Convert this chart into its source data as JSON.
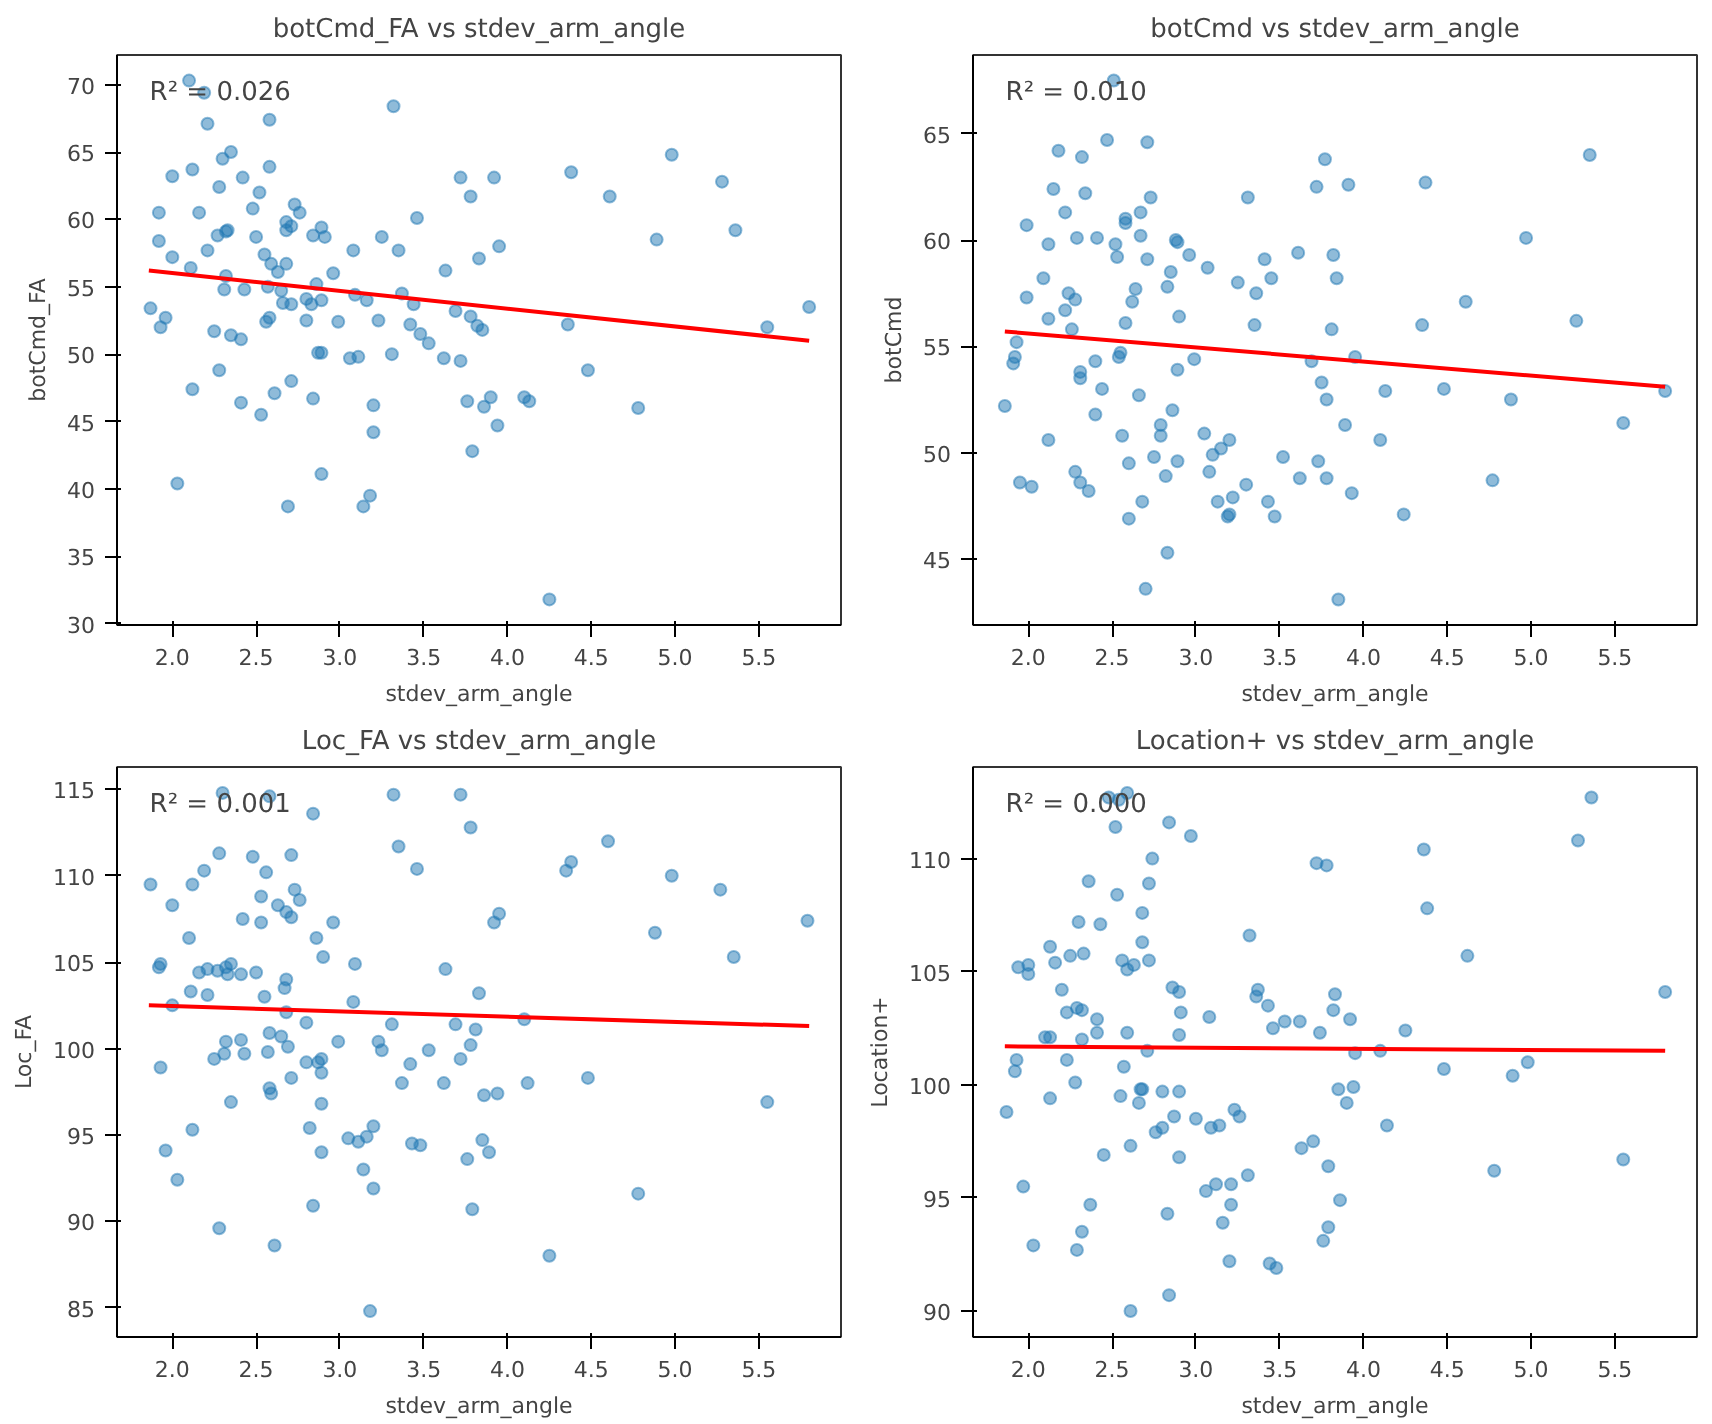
{
  "chart_data": [
    {
      "type": "scatter",
      "title": "botCmd_FA vs stdev_arm_angle",
      "xlabel": "stdev_arm_angle",
      "ylabel": "botCmd_FA",
      "annotations": [
        "R² = 0.026"
      ],
      "grid": false,
      "xlim": [
        1.67,
        5.99
      ],
      "xticks": [
        {
          "value": 2,
          "label": "2.0"
        },
        {
          "value": 2.5,
          "label": "2.5"
        },
        {
          "value": 3,
          "label": "3.0"
        },
        {
          "value": 3.5,
          "label": "3.5"
        },
        {
          "value": 4,
          "label": "4.0"
        },
        {
          "value": 4.5,
          "label": "4.5"
        },
        {
          "value": 5,
          "label": "5.0"
        },
        {
          "value": 5.5,
          "label": "5.5"
        }
      ],
      "ylim": [
        29.9,
        72.2
      ],
      "yticks": [
        30,
        35,
        40,
        45,
        50,
        55,
        60,
        65,
        70
      ],
      "series": [
        {
          "marker": "circle",
          "color": "#1f77b4",
          "x": [
            2.1,
            2.19,
            2.21,
            3.32,
            2.58,
            2.35,
            2.3,
            2.0,
            2.12,
            2.58,
            2.42,
            2.28,
            2.52,
            2.48,
            2.16,
            1.92,
            2.73,
            2.76,
            2.68,
            2.68,
            2.71,
            2.89,
            2.91,
            2.84,
            2.5,
            2.27,
            2.32,
            2.33,
            1.92,
            2.21,
            2.55,
            2.0,
            2.59,
            2.68,
            2.63,
            2.11,
            2.32,
            2.96,
            3.08,
            3.25,
            3.35,
            3.46,
            3.72,
            3.78,
            3.92,
            3.95,
            3.83,
            3.63,
            4.38,
            4.61,
            4.98,
            5.28,
            5.36,
            4.89,
            5.8,
            5.55,
            4.36,
            4.48,
            4.78,
            1.87,
            1.96,
            1.93,
            2.31,
            2.43,
            2.25,
            2.35,
            2.41,
            2.28,
            2.12,
            2.57,
            2.65,
            2.66,
            2.71,
            2.86,
            2.8,
            2.83,
            2.89,
            2.8,
            2.58,
            2.56,
            2.99,
            3.09,
            3.16,
            3.23,
            3.37,
            3.44,
            3.42,
            3.48,
            3.53,
            3.69,
            3.78,
            3.82,
            3.85,
            2.87,
            2.89,
            3.06,
            3.11,
            3.31,
            3.62,
            3.72,
            2.71,
            2.61,
            2.84,
            2.41,
            2.53,
            3.2,
            3.2,
            3.76,
            3.9,
            3.86,
            3.94,
            4.1,
            4.13,
            3.79,
            2.03,
            2.89,
            2.69,
            3.18,
            3.14,
            4.25
          ],
          "values": [
            70.3,
            69.4,
            67.1,
            68.4,
            67.4,
            65.0,
            64.5,
            63.2,
            63.7,
            63.9,
            63.1,
            62.4,
            62.0,
            60.8,
            60.5,
            60.5,
            61.1,
            60.5,
            59.8,
            59.2,
            59.5,
            59.4,
            58.7,
            58.8,
            58.7,
            58.8,
            59.1,
            59.2,
            58.4,
            57.7,
            57.4,
            57.2,
            56.7,
            56.7,
            56.1,
            56.4,
            55.8,
            56.0,
            57.7,
            58.7,
            57.7,
            60.1,
            63.1,
            61.7,
            63.1,
            58.0,
            57.1,
            56.2,
            63.5,
            61.7,
            64.8,
            62.8,
            59.2,
            58.5,
            53.5,
            52.0,
            52.2,
            48.8,
            46.0,
            53.4,
            52.7,
            52.0,
            54.8,
            54.8,
            51.7,
            51.4,
            51.1,
            48.8,
            47.4,
            55.0,
            54.7,
            53.8,
            53.7,
            55.2,
            54.1,
            53.7,
            54.0,
            52.5,
            52.7,
            52.4,
            52.4,
            54.4,
            54.0,
            52.5,
            54.5,
            53.7,
            52.2,
            51.5,
            50.8,
            53.2,
            52.8,
            52.1,
            51.8,
            50.1,
            50.1,
            49.7,
            49.8,
            50.0,
            49.7,
            49.5,
            48.0,
            47.1,
            46.7,
            46.4,
            45.5,
            46.2,
            44.2,
            46.5,
            46.8,
            46.1,
            44.7,
            46.8,
            46.5,
            42.8,
            40.4,
            41.1,
            38.7,
            39.5,
            38.7,
            31.8
          ]
        },
        {
          "type": "line",
          "color": "#ff0000",
          "x": [
            1.86,
            5.8
          ],
          "values": [
            56.2,
            51.0
          ]
        }
      ]
    },
    {
      "type": "scatter",
      "title": "botCmd vs stdev_arm_angle",
      "xlabel": "stdev_arm_angle",
      "ylabel": "botCmd",
      "annotations": [
        "R² = 0.010"
      ],
      "grid": false,
      "xlim": [
        1.67,
        5.99
      ],
      "xticks": [
        {
          "value": 2,
          "label": "2.0"
        },
        {
          "value": 2.5,
          "label": "2.5"
        },
        {
          "value": 3,
          "label": "3.0"
        },
        {
          "value": 3.5,
          "label": "3.5"
        },
        {
          "value": 4,
          "label": "4.0"
        },
        {
          "value": 4.5,
          "label": "4.5"
        },
        {
          "value": 5,
          "label": "5.0"
        },
        {
          "value": 5.5,
          "label": "5.5"
        }
      ],
      "ylim": [
        41.9,
        68.7
      ],
      "yticks": [
        45,
        50,
        55,
        60,
        65
      ],
      "series": [
        {
          "marker": "circle",
          "color": "#1f77b4",
          "x": [
            2.51,
            2.47,
            2.71,
            2.18,
            2.32,
            2.15,
            2.34,
            2.73,
            2.22,
            2.67,
            2.58,
            2.58,
            1.99,
            2.12,
            2.29,
            2.41,
            2.67,
            2.52,
            2.53,
            2.71,
            2.88,
            2.89,
            2.96,
            2.85,
            3.07,
            3.31,
            3.25,
            3.41,
            3.45,
            3.36,
            3.61,
            3.82,
            3.84,
            3.72,
            3.77,
            3.91,
            4.37,
            5.35,
            4.97,
            4.61,
            5.27,
            4.35,
            3.81,
            3.35,
            2.09,
            1.99,
            2.24,
            2.28,
            2.22,
            2.12,
            2.26,
            2.64,
            2.62,
            2.83,
            2.58,
            2.9,
            1.93,
            1.92,
            1.91,
            1.86,
            2.4,
            2.31,
            2.31,
            2.44,
            2.55,
            2.54,
            2.4,
            2.66,
            2.89,
            2.99,
            3.95,
            3.69,
            3.75,
            3.78,
            4.13,
            4.48,
            4.88,
            5.8,
            5.55,
            2.12,
            2.56,
            2.79,
            2.79,
            2.86,
            3.05,
            3.2,
            3.15,
            3.1,
            2.75,
            2.89,
            2.6,
            2.28,
            2.82,
            3.08,
            2.31,
            2.36,
            1.95,
            2.02,
            2.68,
            2.6,
            2.83,
            2.7,
            3.13,
            3.22,
            3.19,
            3.2,
            3.3,
            3.43,
            3.47,
            3.52,
            3.62,
            3.73,
            3.78,
            3.89,
            3.93,
            4.1,
            4.24,
            4.77,
            3.85
          ],
          "values": [
            67.5,
            64.7,
            64.6,
            64.2,
            63.9,
            62.4,
            62.2,
            62.0,
            61.3,
            61.3,
            61.0,
            60.8,
            60.7,
            59.8,
            60.1,
            60.1,
            60.2,
            59.8,
            59.2,
            59.1,
            60.0,
            59.9,
            59.3,
            58.5,
            58.7,
            62.0,
            58.0,
            59.1,
            58.2,
            57.5,
            59.4,
            59.3,
            58.2,
            62.5,
            63.8,
            62.6,
            62.7,
            64.0,
            60.1,
            57.1,
            56.2,
            56.0,
            55.8,
            56.0,
            58.2,
            57.3,
            57.5,
            57.2,
            56.7,
            56.3,
            55.8,
            57.7,
            57.1,
            57.8,
            56.1,
            56.4,
            55.2,
            54.5,
            54.2,
            52.2,
            54.3,
            53.8,
            53.5,
            53.0,
            54.7,
            54.5,
            51.8,
            52.7,
            53.9,
            54.4,
            54.5,
            54.3,
            53.3,
            52.5,
            52.9,
            53.0,
            52.5,
            52.9,
            51.4,
            50.6,
            50.8,
            51.3,
            50.8,
            52.0,
            50.9,
            50.6,
            50.2,
            49.9,
            49.8,
            49.6,
            49.5,
            49.1,
            48.9,
            49.1,
            48.6,
            48.2,
            48.6,
            48.4,
            47.7,
            46.9,
            45.3,
            43.6,
            47.7,
            47.9,
            47.0,
            47.1,
            48.5,
            47.7,
            47.0,
            49.8,
            48.8,
            49.6,
            48.8,
            51.3,
            48.1,
            50.6,
            47.1,
            48.7,
            43.1
          ]
        },
        {
          "type": "line",
          "color": "#ff0000",
          "x": [
            1.86,
            5.8
          ],
          "values": [
            55.7,
            53.1
          ]
        }
      ]
    },
    {
      "type": "scatter",
      "title": "Loc_FA vs stdev_arm_angle",
      "xlabel": "stdev_arm_angle",
      "ylabel": "Loc_FA",
      "annotations": [
        "R² = 0.001"
      ],
      "grid": false,
      "xlim": [
        1.67,
        5.99
      ],
      "xticks": [
        {
          "value": 2,
          "label": "2.0"
        },
        {
          "value": 2.5,
          "label": "2.5"
        },
        {
          "value": 3,
          "label": "3.0"
        },
        {
          "value": 3.5,
          "label": "3.5"
        },
        {
          "value": 4,
          "label": "4.0"
        },
        {
          "value": 4.5,
          "label": "4.5"
        },
        {
          "value": 5,
          "label": "5.0"
        },
        {
          "value": 5.5,
          "label": "5.5"
        }
      ],
      "ylim": [
        83.3,
        116.3
      ],
      "yticks": [
        85,
        90,
        95,
        100,
        105,
        110,
        115
      ],
      "series": [
        {
          "marker": "circle",
          "color": "#1f77b4",
          "x": [
            2.3,
            2.58,
            3.32,
            3.72,
            2.84,
            3.78,
            3.35,
            4.6,
            2.28,
            2.48,
            2.71,
            2.19,
            2.56,
            3.46,
            4.38,
            4.35,
            1.87,
            2.12,
            2.73,
            2.76,
            2.53,
            2.63,
            2.68,
            2.71,
            2.0,
            4.98,
            5.27,
            5.79,
            4.88,
            5.35,
            3.92,
            3.95,
            2.42,
            2.53,
            2.96,
            2.1,
            2.86,
            2.9,
            1.92,
            1.93,
            2.16,
            2.21,
            2.27,
            2.32,
            2.35,
            2.33,
            2.41,
            2.5,
            3.09,
            3.63,
            2.68,
            2.67,
            2.11,
            2.21,
            2.55,
            2.0,
            3.83,
            3.08,
            2.68,
            4.1,
            2.8,
            3.31,
            3.69,
            3.81,
            2.58,
            2.65,
            2.32,
            2.41,
            2.99,
            3.23,
            2.69,
            3.25,
            3.53,
            3.78,
            2.57,
            2.31,
            2.43,
            2.25,
            2.89,
            2.8,
            2.87,
            3.72,
            3.42,
            1.93,
            2.89,
            2.71,
            3.37,
            3.62,
            4.12,
            4.48,
            2.58,
            2.59,
            3.86,
            3.94,
            2.35,
            2.89,
            5.55,
            2.12,
            2.82,
            3.05,
            3.11,
            3.16,
            3.2,
            3.43,
            3.48,
            3.85,
            3.89,
            3.76,
            1.96,
            2.89,
            2.03,
            3.14,
            3.2,
            2.84,
            3.79,
            4.78,
            2.28,
            2.61,
            4.25,
            3.18
          ],
          "values": [
            114.8,
            114.6,
            114.7,
            114.7,
            113.6,
            112.8,
            111.7,
            112.0,
            111.3,
            111.1,
            111.2,
            110.3,
            110.2,
            110.4,
            110.8,
            110.3,
            109.5,
            109.5,
            109.2,
            108.6,
            108.8,
            108.3,
            107.9,
            107.6,
            108.3,
            110.0,
            109.2,
            107.4,
            106.7,
            105.3,
            107.3,
            107.8,
            107.5,
            107.3,
            107.3,
            106.4,
            106.4,
            105.3,
            104.7,
            104.9,
            104.4,
            104.6,
            104.5,
            104.7,
            104.9,
            104.3,
            104.3,
            104.4,
            104.9,
            104.6,
            104.0,
            103.5,
            103.3,
            103.1,
            103.0,
            102.5,
            103.2,
            102.7,
            102.1,
            101.7,
            101.5,
            101.4,
            101.4,
            101.1,
            100.9,
            100.7,
            100.4,
            100.5,
            100.4,
            100.4,
            100.1,
            99.9,
            99.9,
            100.2,
            99.8,
            99.7,
            99.7,
            99.4,
            99.4,
            99.2,
            99.2,
            99.4,
            99.1,
            98.9,
            98.6,
            98.3,
            98.0,
            98.0,
            98.0,
            98.3,
            97.7,
            97.4,
            97.3,
            97.4,
            96.9,
            96.8,
            96.9,
            95.3,
            95.4,
            94.8,
            94.6,
            94.9,
            95.5,
            94.5,
            94.4,
            94.7,
            94.0,
            93.6,
            94.1,
            94.0,
            92.4,
            93.0,
            91.9,
            90.9,
            90.7,
            91.6,
            89.6,
            88.6,
            88.0,
            84.8
          ]
        },
        {
          "type": "line",
          "color": "#ff0000",
          "x": [
            1.86,
            5.8
          ],
          "values": [
            102.5,
            101.3
          ]
        }
      ]
    },
    {
      "type": "scatter",
      "title": "Location+ vs stdev_arm_angle",
      "xlabel": "stdev_arm_angle",
      "ylabel": "Location+",
      "annotations": [
        "R² = 0.000"
      ],
      "grid": false,
      "xlim": [
        1.67,
        5.99
      ],
      "xticks": [
        {
          "value": 2,
          "label": "2.0"
        },
        {
          "value": 2.5,
          "label": "2.5"
        },
        {
          "value": 3,
          "label": "3.0"
        },
        {
          "value": 3.5,
          "label": "3.5"
        },
        {
          "value": 4,
          "label": "4.0"
        },
        {
          "value": 4.5,
          "label": "4.5"
        },
        {
          "value": 5,
          "label": "5.0"
        },
        {
          "value": 5.5,
          "label": "5.5"
        }
      ],
      "ylim": [
        88.85,
        114.05
      ],
      "yticks": [
        90,
        95,
        100,
        105,
        110
      ],
      "series": [
        {
          "marker": "circle",
          "color": "#1f77b4",
          "x": [
            2.59,
            2.54,
            2.48,
            2.52,
            2.84,
            2.97,
            5.36,
            5.28,
            4.36,
            3.72,
            3.78,
            2.74,
            2.36,
            2.72,
            2.53,
            4.38,
            2.68,
            2.3,
            2.43,
            3.32,
            2.68,
            2.13,
            2.25,
            2.33,
            2.56,
            2.72,
            2.63,
            2.59,
            2.16,
            1.94,
            2.0,
            2.0,
            4.62,
            5.8,
            2.2,
            2.86,
            2.9,
            3.37,
            3.36,
            3.83,
            2.23,
            2.29,
            2.32,
            2.91,
            3.43,
            3.82,
            3.08,
            2.41,
            3.53,
            3.62,
            3.92,
            3.46,
            2.41,
            2.59,
            2.9,
            3.74,
            4.25,
            2.1,
            2.13,
            2.32,
            2.71,
            3.95,
            4.1,
            1.93,
            2.23,
            1.92,
            2.57,
            4.48,
            4.98,
            4.89,
            2.28,
            3.94,
            3.85,
            3.9,
            2.68,
            2.67,
            2.66,
            2.55,
            2.8,
            2.9,
            2.13,
            1.87,
            3.23,
            3.26,
            2.87,
            3.0,
            3.09,
            3.14,
            2.8,
            2.76,
            4.14,
            3.7,
            3.63,
            2.61,
            2.45,
            2.9,
            3.79,
            4.78,
            5.55,
            3.31,
            3.21,
            3.12,
            3.06,
            3.21,
            1.97,
            2.37,
            3.86,
            2.83,
            3.16,
            3.79,
            2.32,
            3.76,
            2.03,
            2.29,
            3.2,
            3.44,
            3.48,
            2.84,
            2.61
          ],
          "values": [
            112.9,
            112.6,
            112.7,
            111.4,
            111.6,
            111.0,
            112.7,
            110.8,
            110.4,
            109.8,
            109.7,
            110.0,
            109.0,
            108.9,
            108.4,
            107.8,
            107.6,
            107.2,
            107.1,
            106.6,
            106.3,
            106.1,
            105.7,
            105.8,
            105.5,
            105.5,
            105.3,
            105.1,
            105.4,
            105.2,
            105.3,
            104.9,
            105.7,
            104.1,
            104.2,
            104.3,
            104.1,
            104.2,
            103.9,
            104.0,
            103.2,
            103.4,
            103.3,
            103.2,
            103.5,
            103.3,
            103.0,
            102.9,
            102.8,
            102.8,
            102.9,
            102.5,
            102.3,
            102.3,
            102.2,
            102.3,
            102.4,
            102.1,
            102.1,
            102.0,
            101.5,
            101.4,
            101.5,
            101.1,
            101.1,
            100.6,
            100.8,
            100.7,
            101.0,
            100.4,
            100.1,
            99.9,
            99.8,
            99.2,
            99.8,
            99.8,
            99.2,
            99.5,
            99.7,
            99.7,
            99.4,
            98.8,
            98.9,
            98.6,
            98.6,
            98.5,
            98.1,
            98.2,
            98.1,
            97.9,
            98.2,
            97.5,
            97.2,
            97.3,
            96.9,
            96.8,
            96.4,
            96.2,
            96.7,
            96.0,
            95.6,
            95.6,
            95.3,
            94.7,
            95.5,
            94.7,
            94.9,
            94.3,
            93.9,
            93.7,
            93.5,
            93.1,
            92.9,
            92.7,
            92.2,
            92.1,
            91.9,
            90.7,
            90.0
          ]
        },
        {
          "type": "line",
          "color": "#ff0000",
          "x": [
            1.86,
            5.8
          ],
          "values": [
            101.7,
            101.5
          ]
        }
      ]
    }
  ]
}
